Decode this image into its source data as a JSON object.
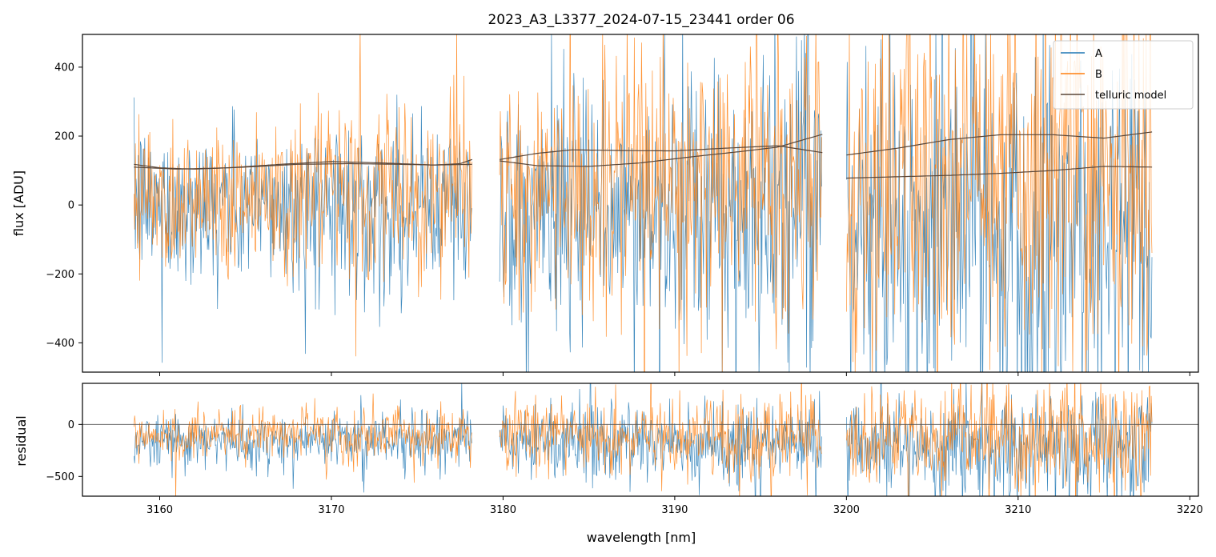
{
  "chart_data": [
    {
      "type": "line",
      "title": "2023_A3_L3377_2024-07-15_23441  order 06",
      "xlabel": "",
      "ylabel": "flux [ADU]",
      "xlim": [
        3155.5,
        3220.5
      ],
      "ylim": [
        -485,
        495
      ],
      "yticks": [
        -400,
        -200,
        0,
        200,
        400
      ],
      "ytick_labels": [
        "−400",
        "−200",
        "0",
        "200",
        "400"
      ],
      "xticks": [
        3160,
        3170,
        3180,
        3190,
        3200,
        3210,
        3220
      ],
      "xtick_labels": [],
      "segments": [
        [
          3158.5,
          3178.2
        ],
        [
          3179.8,
          3198.6
        ],
        [
          3200.0,
          3217.8
        ]
      ],
      "series": [
        {
          "name": "A",
          "color": "#1f77b4",
          "style": "noisy spectrum",
          "approx_center": [
            [
              3158.5,
              0
            ],
            [
              3178.2,
              -10
            ],
            [
              3179.8,
              -20
            ],
            [
              3198.6,
              -40
            ],
            [
              3200.0,
              -60
            ],
            [
              3217.8,
              -80
            ]
          ],
          "approx_spread": [
            [
              3158.5,
              150
            ],
            [
              3178.2,
              170
            ],
            [
              3179.8,
              220
            ],
            [
              3198.6,
              300
            ],
            [
              3200.0,
              320
            ],
            [
              3217.8,
              420
            ]
          ]
        },
        {
          "name": "B",
          "color": "#ff7f0e",
          "style": "noisy spectrum",
          "approx_center": [
            [
              3158.5,
              30
            ],
            [
              3178.2,
              40
            ],
            [
              3179.8,
              40
            ],
            [
              3198.6,
              60
            ],
            [
              3200.0,
              60
            ],
            [
              3217.8,
              80
            ]
          ],
          "approx_spread": [
            [
              3158.5,
              150
            ],
            [
              3178.2,
              170
            ],
            [
              3179.8,
              220
            ],
            [
              3198.6,
              300
            ],
            [
              3200.0,
              320
            ],
            [
              3217.8,
              420
            ]
          ]
        },
        {
          "name": "telluric model",
          "color": "#5a4638",
          "style": "smooth",
          "curves": [
            [
              [
                3158.5,
                118
              ],
              [
                3160,
                108
              ],
              [
                3162,
                104
              ],
              [
                3165,
                110
              ],
              [
                3168,
                118
              ],
              [
                3171,
                120
              ],
              [
                3174,
                118
              ],
              [
                3176,
                116
              ],
              [
                3178.2,
                118
              ]
            ],
            [
              [
                3158.5,
                110
              ],
              [
                3161,
                104
              ],
              [
                3164,
                108
              ],
              [
                3167,
                118
              ],
              [
                3170,
                126
              ],
              [
                3173,
                122
              ],
              [
                3176,
                116
              ],
              [
                3177.5,
                120
              ],
              [
                3178.2,
                132
              ]
            ],
            [
              [
                3179.8,
                128
              ],
              [
                3182,
                114
              ],
              [
                3185,
                112
              ],
              [
                3188,
                122
              ],
              [
                3191,
                140
              ],
              [
                3194,
                156
              ],
              [
                3196,
                168
              ],
              [
                3198.6,
                205
              ]
            ],
            [
              [
                3179.8,
                132
              ],
              [
                3182,
                150
              ],
              [
                3184,
                160
              ],
              [
                3187,
                158
              ],
              [
                3190,
                157
              ],
              [
                3193,
                165
              ],
              [
                3196,
                172
              ],
              [
                3198.6,
                152
              ]
            ],
            [
              [
                3200.0,
                145
              ],
              [
                3203,
                165
              ],
              [
                3206,
                190
              ],
              [
                3209,
                204
              ],
              [
                3212,
                204
              ],
              [
                3215,
                194
              ],
              [
                3217.8,
                212
              ]
            ],
            [
              [
                3200.0,
                78
              ],
              [
                3203,
                82
              ],
              [
                3206,
                86
              ],
              [
                3209,
                92
              ],
              [
                3212,
                100
              ],
              [
                3215,
                112
              ],
              [
                3217.8,
                110
              ]
            ]
          ]
        }
      ],
      "legend": {
        "location": "top-right",
        "entries": [
          "A",
          "B",
          "telluric model"
        ]
      },
      "grid": false
    },
    {
      "type": "line",
      "title": "",
      "xlabel": "wavelength [nm]",
      "ylabel": "residual",
      "xlim": [
        3155.5,
        3220.5
      ],
      "ylim": [
        -690,
        395
      ],
      "yticks": [
        -500,
        0
      ],
      "ytick_labels": [
        "−500",
        "0"
      ],
      "xticks": [
        3160,
        3170,
        3180,
        3190,
        3200,
        3210,
        3220
      ],
      "xtick_labels": [
        "3160",
        "3170",
        "3180",
        "3190",
        "3200",
        "3210",
        "3220"
      ],
      "segments": [
        [
          3158.5,
          3178.2
        ],
        [
          3179.8,
          3198.6
        ],
        [
          3200.0,
          3217.8
        ]
      ],
      "reference_line": 0,
      "series": [
        {
          "name": "A",
          "color": "#1f77b4",
          "style": "noisy residual",
          "approx_center": [
            [
              3158.5,
              -150
            ],
            [
              3178.2,
              -150
            ],
            [
              3179.8,
              -160
            ],
            [
              3198.6,
              -200
            ],
            [
              3200.0,
              -200
            ],
            [
              3217.8,
              -250
            ]
          ],
          "approx_spread": [
            [
              3158.5,
              170
            ],
            [
              3178.2,
              180
            ],
            [
              3179.8,
              220
            ],
            [
              3198.6,
              290
            ],
            [
              3200.0,
              300
            ],
            [
              3217.8,
              380
            ]
          ]
        },
        {
          "name": "B",
          "color": "#ff7f0e",
          "style": "noisy residual",
          "approx_center": [
            [
              3158.5,
              -90
            ],
            [
              3178.2,
              -90
            ],
            [
              3179.8,
              -90
            ],
            [
              3198.6,
              -110
            ],
            [
              3200.0,
              -110
            ],
            [
              3217.8,
              -130
            ]
          ],
          "approx_spread": [
            [
              3158.5,
              170
            ],
            [
              3178.2,
              180
            ],
            [
              3179.8,
              220
            ],
            [
              3198.6,
              290
            ],
            [
              3200.0,
              300
            ],
            [
              3217.8,
              380
            ]
          ]
        }
      ],
      "grid": false
    }
  ]
}
